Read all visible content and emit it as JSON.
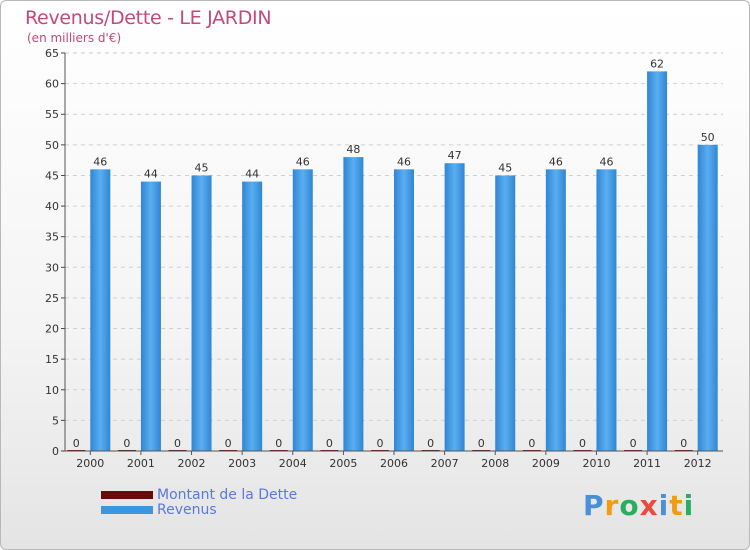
{
  "chart_data": {
    "type": "bar",
    "title": "Revenus/Dette - LE JARDIN",
    "subtitle": "(en milliers d'€)",
    "categories": [
      "2000",
      "2001",
      "2002",
      "2003",
      "2004",
      "2005",
      "2006",
      "2007",
      "2008",
      "2009",
      "2010",
      "2011",
      "2012"
    ],
    "series": [
      {
        "name": "Montant de la Dette",
        "color": "#6b0a0a",
        "values": [
          0,
          0,
          0,
          0,
          0,
          0,
          0,
          0,
          0,
          0,
          0,
          0,
          0
        ]
      },
      {
        "name": "Revenus",
        "color": "#3a97e0",
        "values": [
          46,
          44,
          45,
          44,
          46,
          48,
          46,
          47,
          45,
          46,
          46,
          62,
          50
        ]
      }
    ],
    "ylim": [
      0,
      65
    ],
    "yticks": [
      0,
      5,
      10,
      15,
      20,
      25,
      30,
      35,
      40,
      45,
      50,
      55,
      60,
      65
    ],
    "grid": true,
    "legend_position": "bottom-left"
  },
  "logo": {
    "letters": [
      "P",
      "r",
      "o",
      "x",
      "i",
      "t",
      "i"
    ],
    "colors": [
      "#4a90d9",
      "#f39c12",
      "#27ae60",
      "#e74c3c",
      "#4a90d9",
      "#f39c12",
      "#27ae60"
    ]
  }
}
